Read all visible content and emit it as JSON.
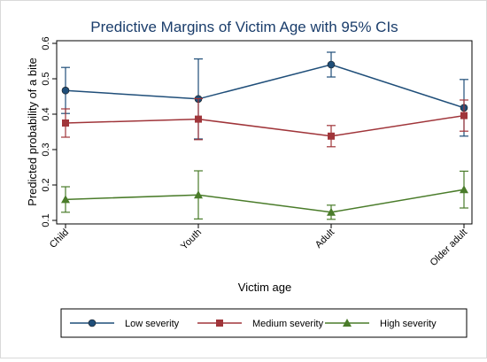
{
  "chart_data": {
    "type": "line",
    "title": "Predictive Margins of Victim Age with 95% CIs",
    "xlabel": "Victim age",
    "ylabel": "Predicted probability of a bite",
    "categories": [
      "Child",
      "Youth",
      "Adult",
      "Older adult"
    ],
    "ylim": [
      0.1,
      0.6
    ],
    "yticks": [
      "0.1",
      "0.2",
      "0.3",
      "0.4",
      "0.5",
      "0.6"
    ],
    "grid": false,
    "legend_position": "bottom",
    "series": [
      {
        "name": "Low severity",
        "color": "#1f4e79",
        "marker": "circle",
        "values": [
          0.467,
          0.443,
          0.54,
          0.418
        ],
        "ci_low": [
          0.402,
          0.33,
          0.505,
          0.338
        ],
        "ci_high": [
          0.532,
          0.556,
          0.575,
          0.498
        ]
      },
      {
        "name": "Medium severity",
        "color": "#a0353a",
        "marker": "square",
        "values": [
          0.375,
          0.386,
          0.338,
          0.396
        ],
        "ci_low": [
          0.335,
          0.328,
          0.308,
          0.352
        ],
        "ci_high": [
          0.415,
          0.444,
          0.368,
          0.44
        ]
      },
      {
        "name": "High severity",
        "color": "#4a7c2a",
        "marker": "triangle",
        "values": [
          0.159,
          0.172,
          0.123,
          0.187
        ],
        "ci_low": [
          0.123,
          0.104,
          0.103,
          0.135
        ],
        "ci_high": [
          0.195,
          0.24,
          0.143,
          0.239
        ]
      }
    ]
  }
}
